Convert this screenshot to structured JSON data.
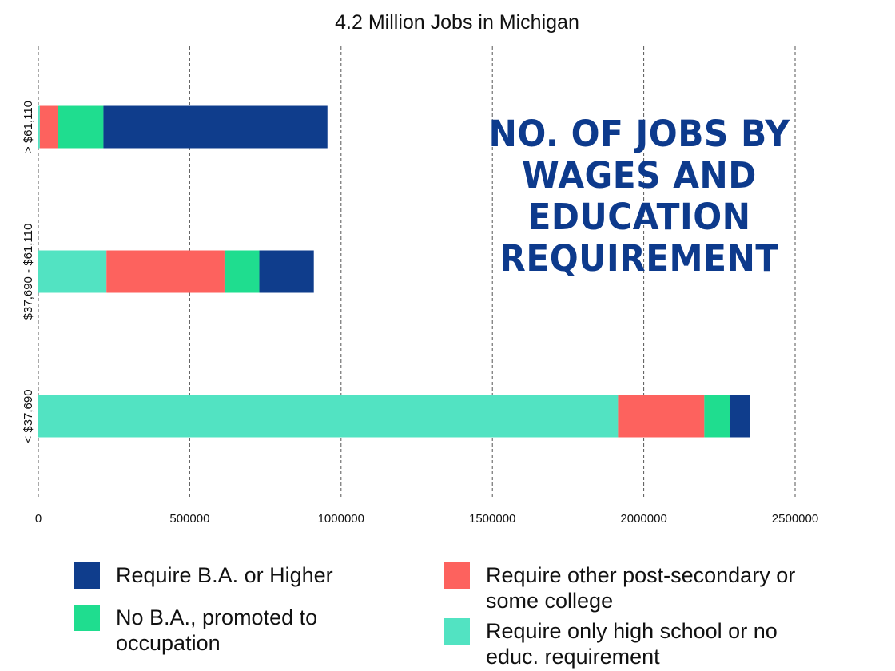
{
  "chart_data": {
    "type": "bar",
    "orientation": "horizontal",
    "stacked": true,
    "title": "4.2 Million Jobs in Michigan",
    "headline": "NO. OF JOBS BY WAGES AND EDUCATION REQUIREMENT",
    "categories": [
      "> $61,110",
      "$37,690 - $61,110",
      "< $37,690"
    ],
    "series": [
      {
        "name": "Require only high school or no educ. requirement",
        "color": "#52e3c2",
        "values": [
          5000,
          225000,
          1915000
        ]
      },
      {
        "name": "Require other post-secondary or some college",
        "color": "#fd625e",
        "values": [
          60000,
          390000,
          285000
        ]
      },
      {
        "name": "No B.A., promoted to occupation",
        "color": "#1fdd8f",
        "values": [
          150000,
          115000,
          85000
        ]
      },
      {
        "name": "Require B.A. or Higher",
        "color": "#0f3d8c",
        "values": [
          740000,
          180000,
          65000
        ]
      }
    ],
    "xlim": [
      0,
      2500000
    ],
    "xticks": [
      "0",
      "500000",
      "1000000",
      "1500000",
      "2000000",
      "2500000"
    ],
    "grid": "vertical dashed",
    "legend_position": "bottom"
  },
  "legend": [
    {
      "label": "Require B.A. or Higher",
      "color": "#0f3d8c"
    },
    {
      "label": "Require other post-secondary or some college",
      "color": "#fd625e"
    },
    {
      "label": "No B.A., promoted to occupation",
      "color": "#1fdd8f"
    },
    {
      "label": "Require only high school or no educ. requirement",
      "color": "#52e3c2"
    }
  ]
}
